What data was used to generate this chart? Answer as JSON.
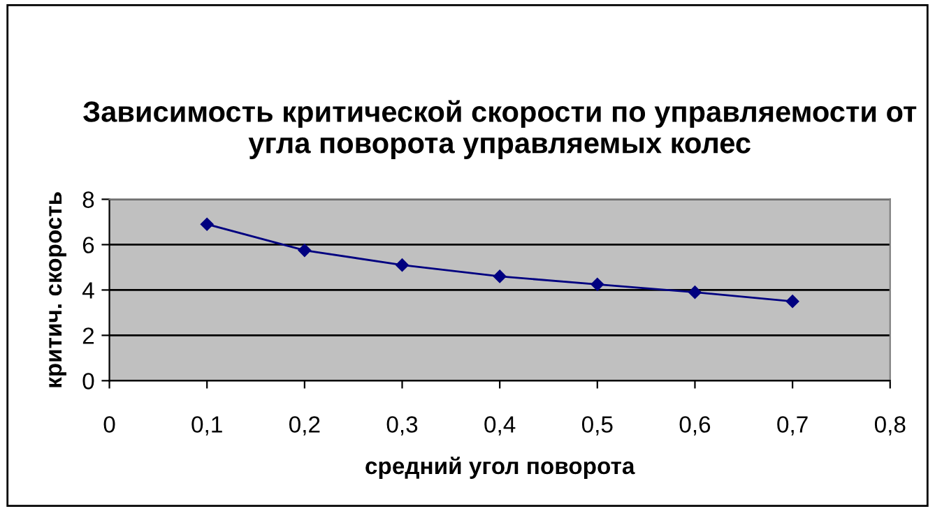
{
  "chart_data": {
    "type": "line",
    "title": "Зависимость критической скорости по управляемости от угла поворота управляемых колес",
    "xlabel": "средний угол поворота",
    "ylabel": "критич. скорость",
    "x": [
      0.1,
      0.2,
      0.3,
      0.4,
      0.5,
      0.6,
      0.7
    ],
    "series": [
      {
        "color": "#000080",
        "values": [
          6.9,
          5.75,
          5.1,
          4.6,
          4.25,
          3.9,
          3.5
        ]
      }
    ],
    "xlim": [
      0,
      0.8
    ],
    "xticks": [
      {
        "value": 0,
        "label": "0"
      },
      {
        "value": 0.1,
        "label": "0,1"
      },
      {
        "value": 0.2,
        "label": "0,2"
      },
      {
        "value": 0.3,
        "label": "0,3"
      },
      {
        "value": 0.4,
        "label": "0,4"
      },
      {
        "value": 0.5,
        "label": "0,5"
      },
      {
        "value": 0.6,
        "label": "0,6"
      },
      {
        "value": 0.7,
        "label": "0,7"
      },
      {
        "value": 0.8,
        "label": "0,8"
      }
    ],
    "ylim": [
      0,
      8
    ],
    "yticks": [
      0,
      2,
      4,
      6,
      8
    ],
    "grid": "y",
    "marker": "diamond",
    "line_style": "solid",
    "legend": false
  }
}
